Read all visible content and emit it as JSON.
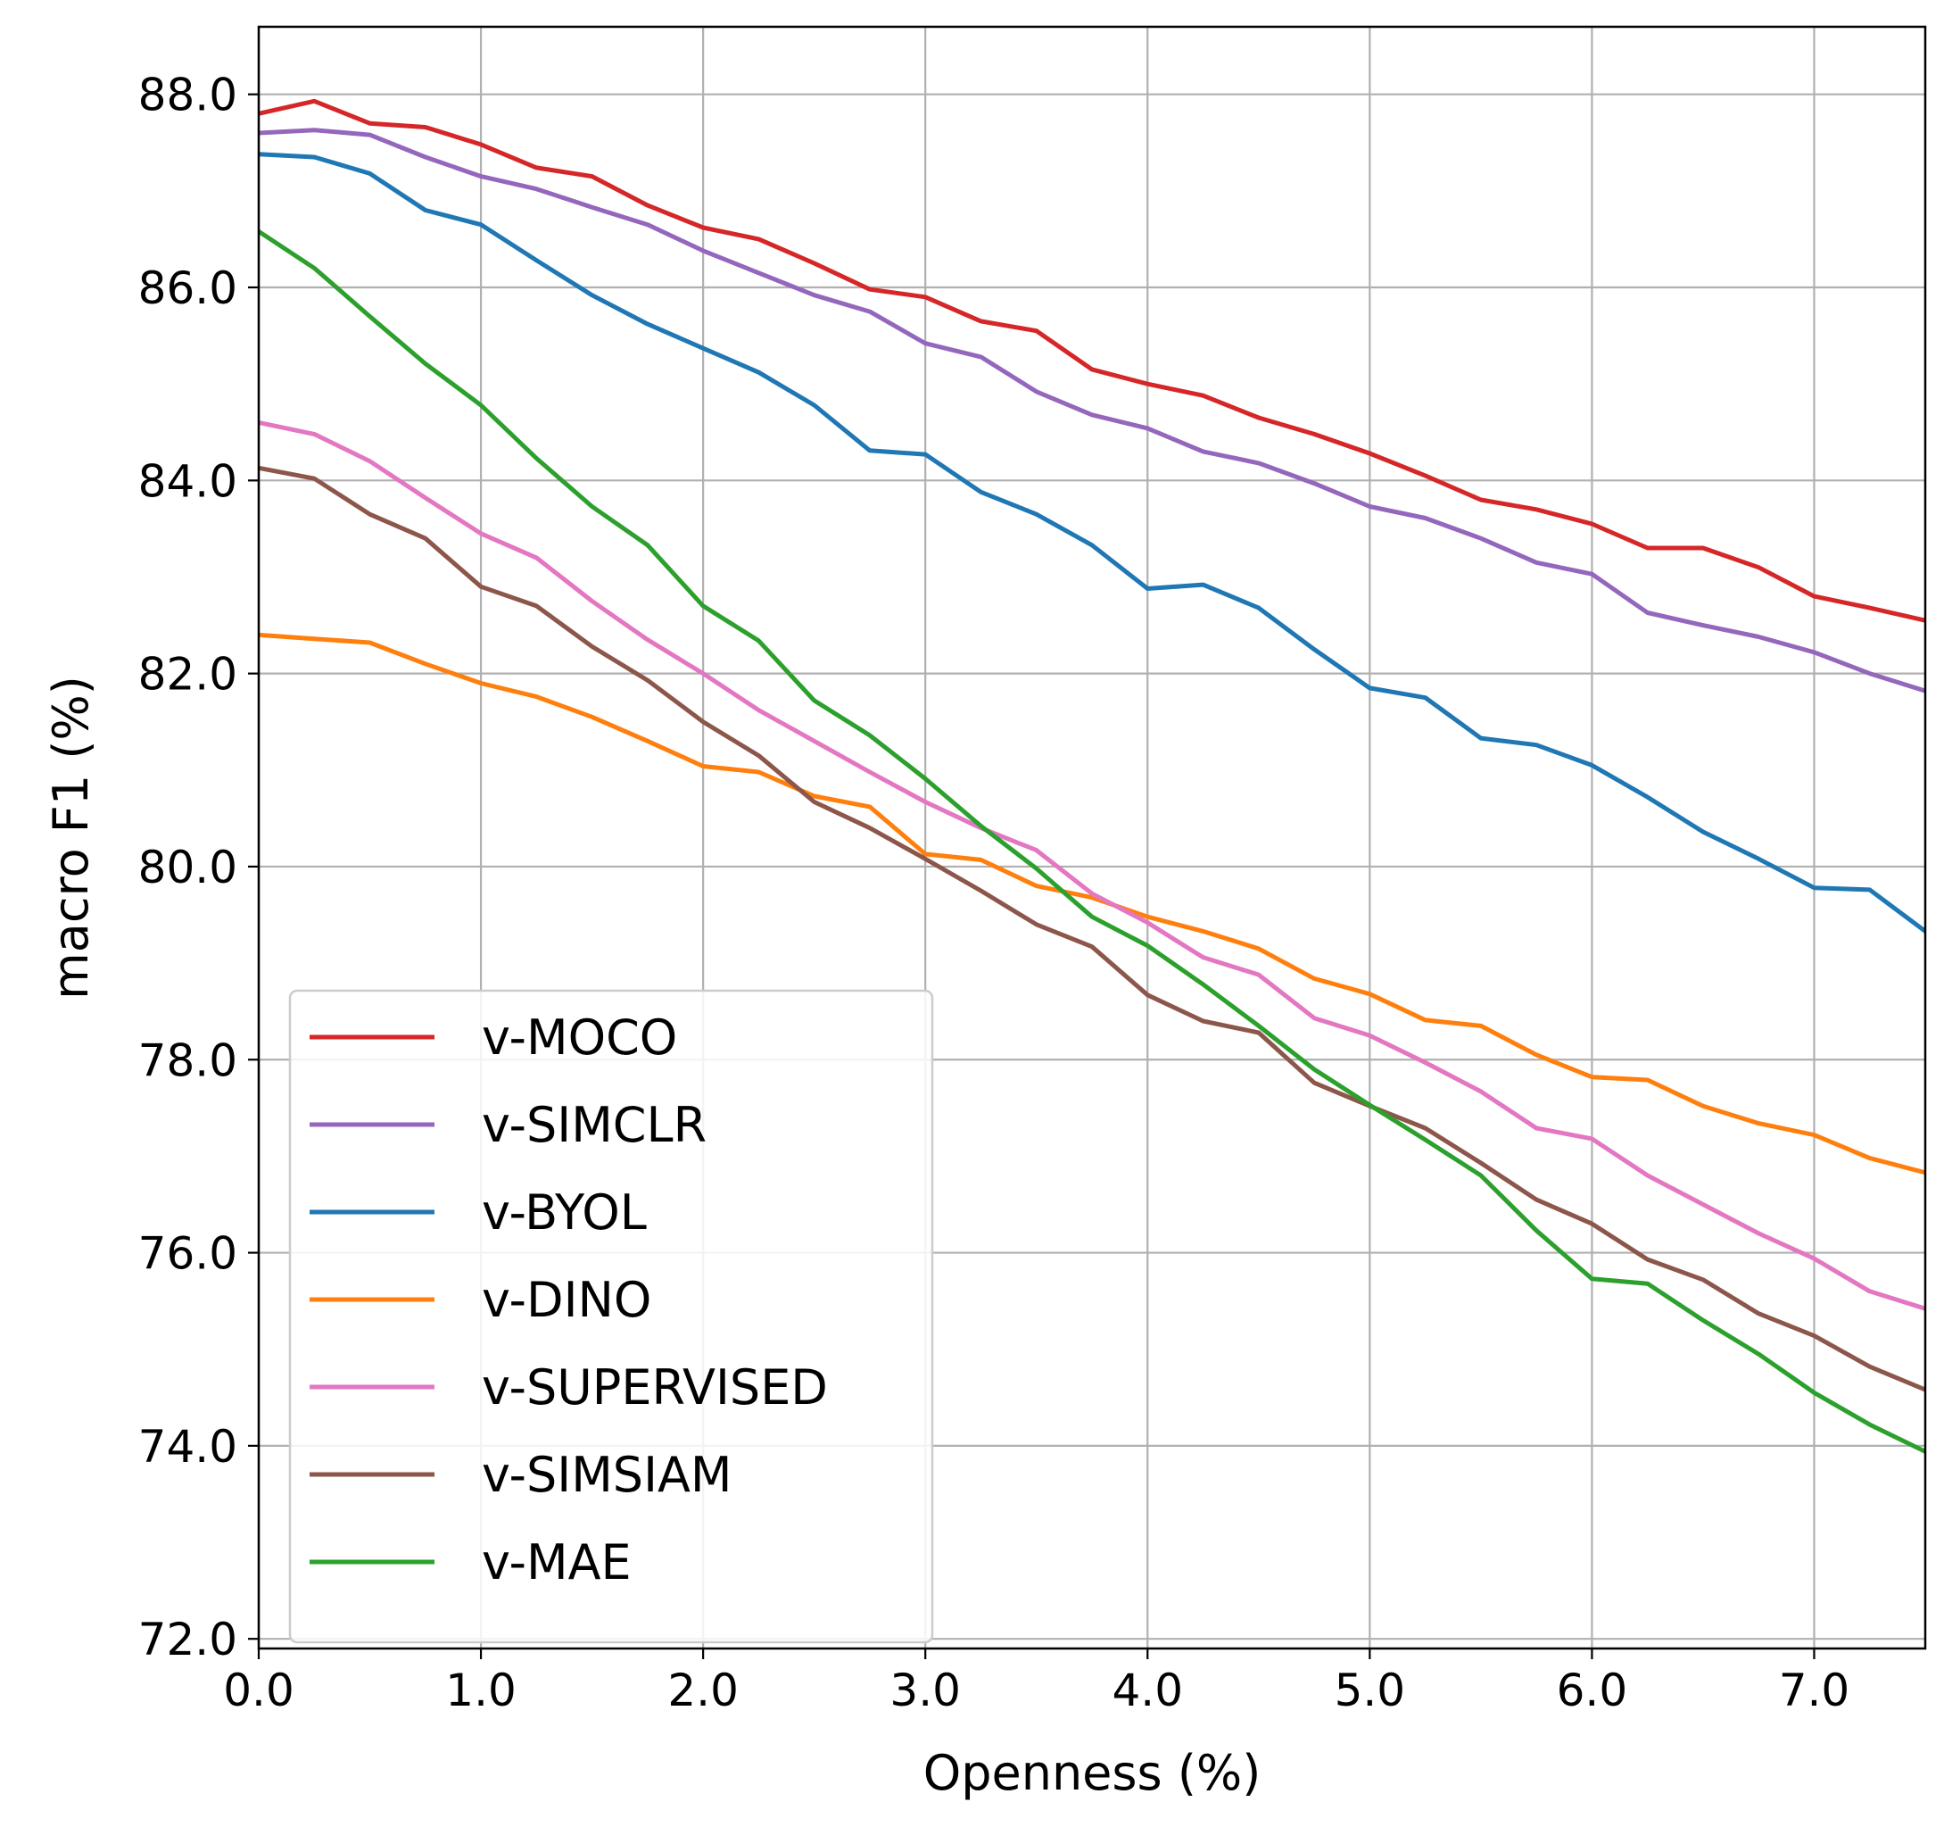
{
  "chart_data": {
    "type": "line",
    "xlabel": "Openness (%)",
    "ylabel": "macro F1 (%)",
    "xlim": [
      0,
      7.5
    ],
    "ylim": [
      71.9,
      88.7
    ],
    "xticks": [
      0,
      1,
      2,
      3,
      4,
      5,
      6,
      7
    ],
    "xtick_labels": [
      "0.0",
      "1.0",
      "2.0",
      "3.0",
      "4.0",
      "5.0",
      "6.0",
      "7.0"
    ],
    "yticks": [
      72,
      74,
      76,
      78,
      80,
      82,
      84,
      86,
      88
    ],
    "ytick_labels": [
      "72.0",
      "74.0",
      "76.0",
      "78.0",
      "80.0",
      "82.0",
      "84.0",
      "86.0",
      "88.0"
    ],
    "grid": true,
    "legend_position": "lower-left",
    "x": [
      0,
      0.25,
      0.5,
      0.75,
      1.0,
      1.25,
      1.5,
      1.75,
      2.0,
      2.25,
      2.5,
      2.75,
      3.0,
      3.25,
      3.5,
      3.75,
      4.0,
      4.25,
      4.5,
      4.75,
      5.0,
      5.25,
      5.5,
      5.75,
      6.0,
      6.25,
      6.5,
      6.75,
      7.0,
      7.25,
      7.5
    ],
    "series": [
      {
        "name": "v-MOCO",
        "color": "#d62728",
        "values": [
          87.8,
          87.93,
          87.7,
          87.66,
          87.48,
          87.24,
          87.15,
          86.85,
          86.62,
          86.5,
          86.25,
          85.98,
          85.9,
          85.65,
          85.55,
          85.15,
          85.0,
          84.88,
          84.65,
          84.48,
          84.28,
          84.05,
          83.8,
          83.7,
          83.55,
          83.3,
          83.3,
          83.1,
          82.8,
          82.68,
          82.55
        ]
      },
      {
        "name": "v-SIMCLR",
        "color": "#9467bd",
        "values": [
          87.6,
          87.63,
          87.58,
          87.35,
          87.15,
          87.02,
          86.83,
          86.65,
          86.38,
          86.15,
          85.92,
          85.75,
          85.42,
          85.28,
          84.92,
          84.68,
          84.54,
          84.3,
          84.18,
          83.97,
          83.73,
          83.61,
          83.4,
          83.15,
          83.03,
          82.63,
          82.5,
          82.38,
          82.22,
          82.0,
          81.82
        ]
      },
      {
        "name": "v-BYOL",
        "color": "#1f77b4",
        "values": [
          87.38,
          87.35,
          87.18,
          86.8,
          86.65,
          86.28,
          85.92,
          85.62,
          85.37,
          85.12,
          84.78,
          84.31,
          84.27,
          83.88,
          83.65,
          83.33,
          82.88,
          82.92,
          82.68,
          82.25,
          81.85,
          81.75,
          81.33,
          81.26,
          81.05,
          80.72,
          80.36,
          80.08,
          79.78,
          79.76,
          79.33
        ]
      },
      {
        "name": "v-DINO",
        "color": "#ff7f0e",
        "values": [
          82.4,
          82.36,
          82.32,
          82.1,
          81.9,
          81.76,
          81.55,
          81.3,
          81.04,
          80.98,
          80.73,
          80.62,
          80.13,
          80.07,
          79.8,
          79.68,
          79.48,
          79.33,
          79.15,
          78.84,
          78.68,
          78.41,
          78.35,
          78.05,
          77.82,
          77.79,
          77.52,
          77.34,
          77.22,
          76.98,
          76.83
        ]
      },
      {
        "name": "v-SUPERVISED",
        "color": "#e377c2",
        "values": [
          84.6,
          84.48,
          84.2,
          83.82,
          83.45,
          83.2,
          82.75,
          82.35,
          82.0,
          81.62,
          81.3,
          80.98,
          80.67,
          80.4,
          80.17,
          79.72,
          79.42,
          79.06,
          78.88,
          78.43,
          78.25,
          77.97,
          77.67,
          77.29,
          77.18,
          76.8,
          76.5,
          76.2,
          75.94,
          75.6,
          75.42
        ]
      },
      {
        "name": "v-SIMSIAM",
        "color": "#8c564b",
        "values": [
          84.13,
          84.02,
          83.65,
          83.4,
          82.9,
          82.7,
          82.28,
          81.93,
          81.5,
          81.15,
          80.67,
          80.4,
          80.08,
          79.75,
          79.4,
          79.17,
          78.67,
          78.4,
          78.28,
          77.76,
          77.52,
          77.29,
          76.93,
          76.55,
          76.3,
          75.93,
          75.72,
          75.37,
          75.14,
          74.82,
          74.58
        ]
      },
      {
        "name": "v-MAE",
        "color": "#2ca02c",
        "values": [
          86.58,
          86.2,
          85.7,
          85.21,
          84.78,
          84.23,
          83.73,
          83.33,
          82.7,
          82.34,
          81.72,
          81.36,
          80.91,
          80.42,
          79.98,
          79.48,
          79.18,
          78.78,
          78.35,
          77.9,
          77.53,
          77.17,
          76.8,
          76.23,
          75.73,
          75.68,
          75.3,
          74.95,
          74.55,
          74.22,
          73.94
        ]
      }
    ]
  }
}
